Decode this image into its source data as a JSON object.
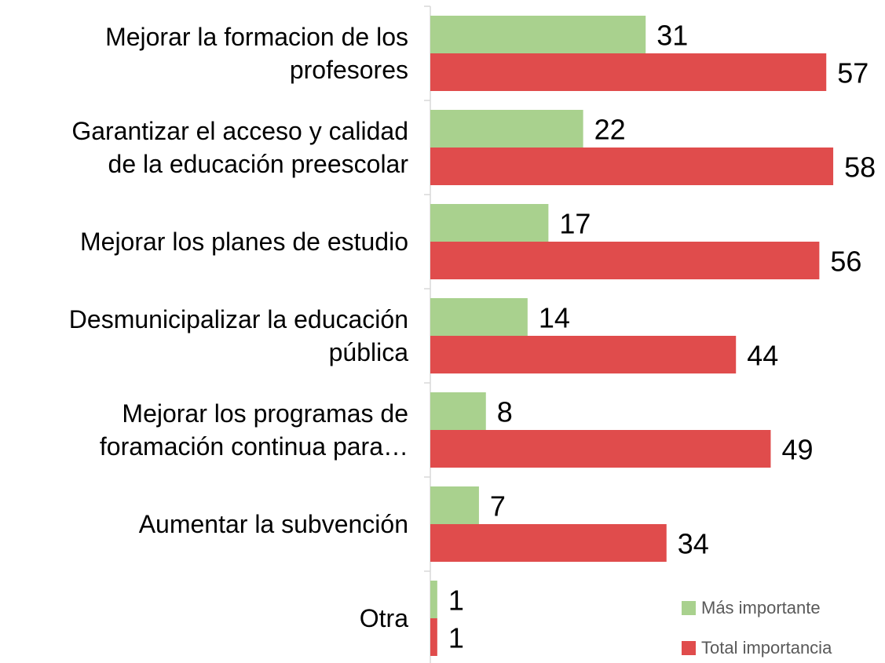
{
  "chart_data": {
    "type": "bar",
    "orientation": "horizontal",
    "categories": [
      "Mejorar la formacion de los\nprofesores",
      "Garantizar el acceso y calidad\nde la educación preescolar",
      "Mejorar los planes de estudio",
      "Desmunicipalizar la educación\npública",
      "Mejorar los programas de\nforamación continua para…",
      "Aumentar la subvención",
      "Otra"
    ],
    "series": [
      {
        "name": "Más importante",
        "color": "#a9d18e",
        "values": [
          31,
          22,
          17,
          14,
          8,
          7,
          1
        ]
      },
      {
        "name": "Total importancia",
        "color": "#e04c4c",
        "values": [
          57,
          58,
          56,
          44,
          49,
          34,
          1
        ]
      }
    ],
    "xlim": [
      0,
      65
    ],
    "legend": "bottom-right"
  }
}
